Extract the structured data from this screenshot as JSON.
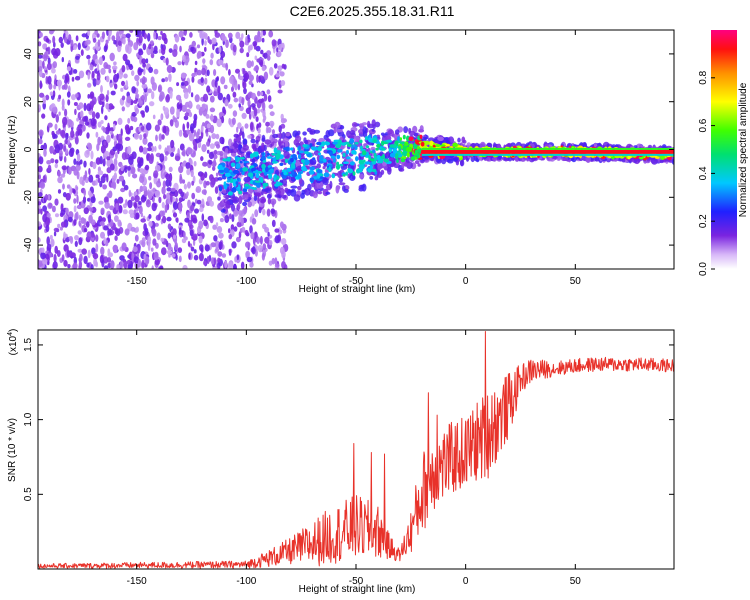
{
  "title": "C2E6.2025.355.18.31.R11",
  "colors": {
    "snr_line": "#e8322a",
    "scatter_purple": "#7a24e0",
    "axis": "#000000"
  },
  "chart_data": [
    {
      "type": "heatmap",
      "xlabel": "Height of straight line (km)",
      "ylabel": "Frequency (Hz)",
      "xlim": [
        -195,
        95
      ],
      "ylim": [
        -50,
        50
      ],
      "xticks": [
        -150,
        -100,
        -50,
        0,
        50
      ],
      "xtick_labels": [
        "-150",
        "-100",
        "-50",
        "0",
        "50"
      ],
      "yticks": [
        -40,
        -20,
        0,
        20,
        40
      ],
      "ytick_labels": [
        "-40",
        "-20",
        "0",
        "20",
        "40"
      ],
      "colorbar": {
        "label": "Normalized spectral amplitude",
        "range": [
          0,
          1
        ],
        "ticks": [
          0.0,
          0.2,
          0.4,
          0.6,
          0.8
        ],
        "tick_labels": [
          "0.0",
          "0.2",
          "0.4",
          "0.6",
          "0.8"
        ]
      },
      "ridge": {
        "x": [
          -110,
          -100,
          -80,
          -60,
          -40,
          -25,
          -15,
          0,
          20,
          50,
          90
        ],
        "freq": [
          -12,
          -10,
          -7,
          -4,
          -2,
          1,
          0,
          -1,
          -1,
          -1,
          -2
        ]
      },
      "noise_region_x": [
        -195,
        -92
      ]
    },
    {
      "type": "line",
      "xlabel": "Height of straight line (km)",
      "ylabel": "SNR (10 * v/v)",
      "yscale_label": "(x10",
      "yscale_exp": "4",
      "yscale_close": ")",
      "xlim": [
        -195,
        95
      ],
      "ylim": [
        0,
        16000
      ],
      "xticks": [
        -150,
        -100,
        -50,
        0,
        50
      ],
      "xtick_labels": [
        "-150",
        "-100",
        "-50",
        "0",
        "50"
      ],
      "yticks": [
        5000,
        10000,
        15000
      ],
      "ytick_labels": [
        "0.5",
        "1.0",
        "1.5"
      ],
      "profile": {
        "x": [
          -195,
          -100,
          -90,
          -80,
          -70,
          -60,
          -50,
          -40,
          -35,
          -30,
          -25,
          -20,
          -15,
          -10,
          -5,
          0,
          5,
          10,
          15,
          20,
          25,
          30,
          40,
          50,
          60,
          70,
          80,
          95
        ],
        "y": [
          200,
          300,
          700,
          1200,
          1700,
          2300,
          2800,
          2500,
          1500,
          900,
          2500,
          5000,
          6500,
          7000,
          7500,
          7800,
          8500,
          9000,
          10000,
          11000,
          12700,
          13300,
          13400,
          13600,
          13700,
          13700,
          13700,
          13600
        ]
      },
      "noise_amplitude": {
        "x": [
          -195,
          -100,
          -80,
          -65,
          -50,
          -40,
          -35,
          -30,
          -25,
          -20,
          -10,
          0,
          10,
          20,
          25,
          40,
          95
        ],
        "y": [
          150,
          250,
          900,
          1800,
          2200,
          1800,
          900,
          400,
          1500,
          2800,
          2500,
          2500,
          3000,
          2200,
          1000,
          500,
          450
        ]
      },
      "spikes": [
        {
          "x": -51,
          "y": 8400
        },
        {
          "x": -43,
          "y": 7800
        },
        {
          "x": -37,
          "y": 7700
        },
        {
          "x": -17,
          "y": 11800
        },
        {
          "x": -13,
          "y": 10300
        },
        {
          "x": 9,
          "y": 15900
        },
        {
          "x": 12,
          "y": 11600
        }
      ]
    }
  ]
}
